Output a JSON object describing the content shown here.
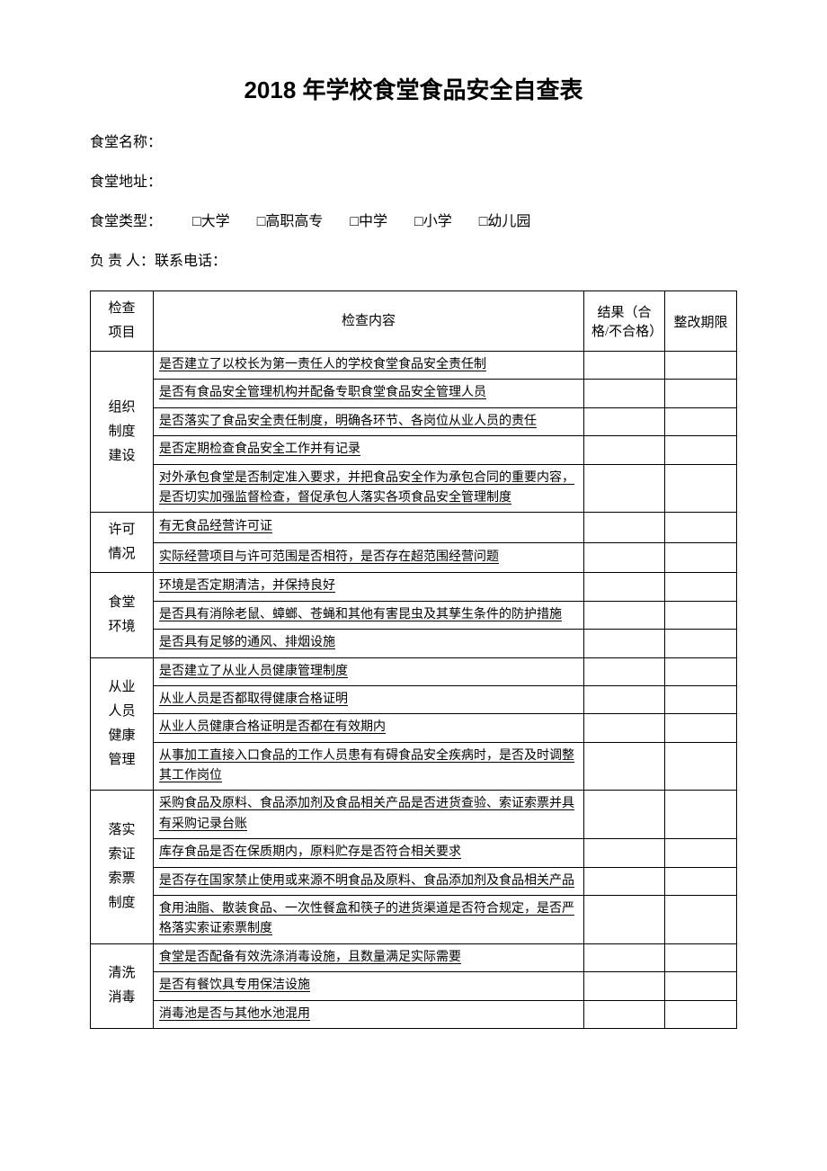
{
  "title": "2018 年学校食堂食品安全自查表",
  "meta": {
    "name_label": "食堂名称：",
    "address_label": "食堂地址：",
    "type_label": "食堂类型：",
    "type_options": [
      "□大学",
      "□高职高专",
      "□中学",
      "□小学",
      "□幼儿园"
    ],
    "responsible_label": "负 责 人：联系电话："
  },
  "headers": {
    "category": "检查\n项目",
    "content": "检查内容",
    "result": "结果（合格/不合格）",
    "deadline": "整改期限"
  },
  "sections": [
    {
      "category": "组织\n制度\n建设",
      "items": [
        "是否建立了以校长为第一责任人的学校食堂食品安全责任制",
        "是否有食品安全管理机构并配备专职食堂食品安全管理人员",
        "是否落实了食品安全责任制度，明确各环节、各岗位从业人员的责任",
        "是否定期检查食品安全工作并有记录",
        "对外承包食堂是否制定准入要求，并把食品安全作为承包合同的重要内容，是否切实加强监督检查，督促承包人落实各项食品安全管理制度"
      ]
    },
    {
      "category": "许可\n情况",
      "items": [
        "有无食品经营许可证",
        "实际经营项目与许可范围是否相符，是否存在超范围经营问题"
      ]
    },
    {
      "category": "食堂\n环境",
      "items": [
        "环境是否定期清洁，并保持良好",
        "是否具有消除老鼠、蟑螂、苍蝇和其他有害昆虫及其孳生条件的防护措施",
        "是否具有足够的通风、排烟设施"
      ]
    },
    {
      "category": "从业\n人员\n健康\n管理",
      "items": [
        "是否建立了从业人员健康管理制度",
        "从业人员是否都取得健康合格证明",
        "从业人员健康合格证明是否都在有效期内",
        "从事加工直接入口食品的工作人员患有有碍食品安全疾病时，是否及时调整其工作岗位"
      ]
    },
    {
      "category": "落实\n索证\n索票\n制度",
      "items": [
        "采购食品及原料、食品添加剂及食品相关产品是否进货查验、索证索票并具有采购记录台账",
        "库存食品是否在保质期内，原料贮存是否符合相关要求",
        "是否存在国家禁止使用或来源不明食品及原料、食品添加剂及食品相关产品",
        "食用油脂、散装食品、一次性餐盒和筷子的进货渠道是否符合规定，是否严格落实索证索票制度"
      ]
    },
    {
      "category": "清洗\n消毒",
      "items": [
        "食堂是否配备有效洗涤消毒设施，且数量满足实际需要",
        "是否有餐饮具专用保洁设施",
        "消毒池是否与其他水池混用"
      ]
    }
  ]
}
